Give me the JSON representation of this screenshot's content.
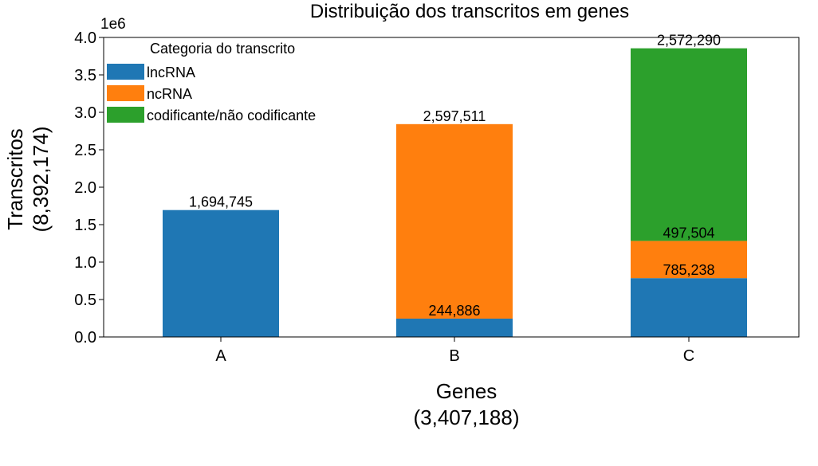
{
  "chart_data": {
    "type": "bar",
    "stacked": true,
    "title": "Distribuição dos transcritos em genes",
    "xlabel_line1": "Genes",
    "xlabel_line2": "(3,407,188)",
    "ylabel_line1": "Transcritos",
    "ylabel_line2": "(8,392,174)",
    "y_offset_text": "1e6",
    "ylim": [
      0,
      4000000
    ],
    "yticks": [
      0,
      500000,
      1000000,
      1500000,
      2000000,
      2500000,
      3000000,
      3500000,
      4000000
    ],
    "ytick_labels": [
      "0.0",
      "0.5",
      "1.0",
      "1.5",
      "2.0",
      "2.5",
      "3.0",
      "3.5",
      "4.0"
    ],
    "categories": [
      "A",
      "B",
      "C"
    ],
    "legend": {
      "title": "Categoria do transcrito",
      "position": "top-left"
    },
    "series": [
      {
        "name": "lncRNA",
        "color": "#1f77b4",
        "values": [
          1694745,
          244886,
          785238
        ],
        "labels": [
          "1,694,745",
          "244,886",
          "785,238"
        ]
      },
      {
        "name": "ncRNA",
        "color": "#ff7f0e",
        "values": [
          0,
          2597511,
          497504
        ],
        "labels": [
          "",
          "2,597,511",
          "497,504"
        ]
      },
      {
        "name": "codificante/não codificante",
        "color": "#2ca02c",
        "values": [
          0,
          0,
          2572290
        ],
        "labels": [
          "",
          "",
          "2,572,290"
        ]
      }
    ]
  }
}
